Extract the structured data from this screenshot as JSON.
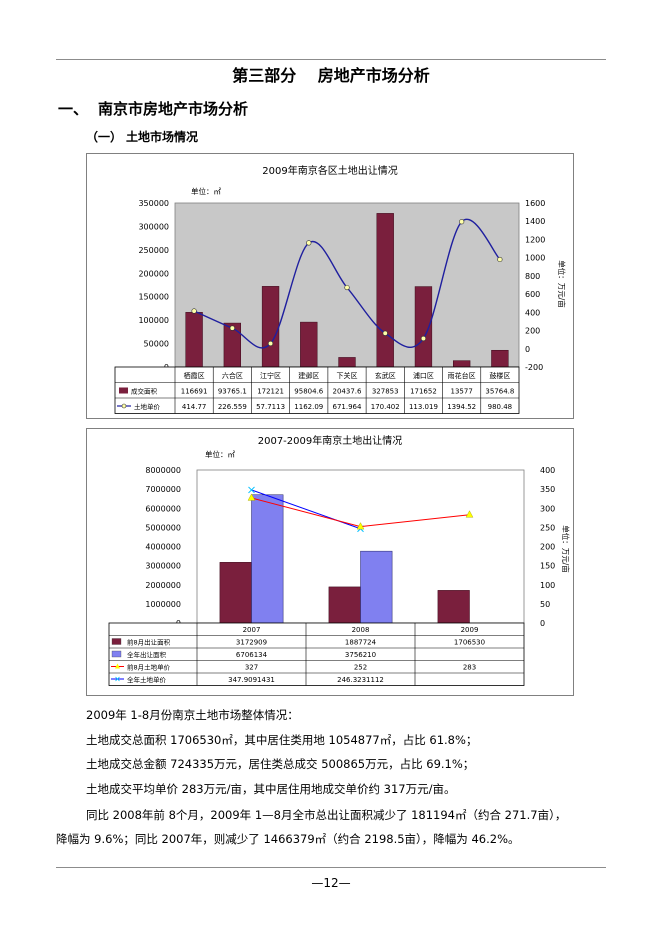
{
  "page": {
    "title": "第三部分　 房地产市场分析",
    "section1": {
      "num": "一、",
      "label": "南京市房地产市场分析"
    },
    "section1_1": {
      "num": "（一）",
      "label": "土地市场情况"
    },
    "footer": "—12—"
  },
  "chart_data": [
    {
      "type": "bar+line",
      "title": "2009年南京各区土地出让情况",
      "unit_left": "单位：㎡",
      "unit_right": "单位：万元/亩",
      "categories": [
        "栖霞区",
        "六合区",
        "江宁区",
        "建邺区",
        "下关区",
        "玄武区",
        "浦口区",
        "雨花台区",
        "鼓楼区"
      ],
      "series": [
        {
          "name": "成交面积",
          "axis": "left",
          "kind": "bar",
          "values": [
            116691,
            93765.1,
            172121,
            95804.6,
            20437.6,
            327853,
            171652,
            13577,
            35764.8
          ],
          "labels": [
            "116691",
            "93765.1",
            "172121",
            "95804.6",
            "20437.6",
            "327853",
            "171652",
            "13577",
            "35764.8"
          ]
        },
        {
          "name": "土地单价",
          "axis": "right",
          "kind": "line",
          "values": [
            414.77,
            226.559,
            57.7113,
            1162.09,
            671.964,
            170.402,
            113.019,
            1394.52,
            980.48
          ],
          "labels": [
            "414.77",
            "226.559",
            "57.7113",
            "1162.09",
            "671.964",
            "170.402",
            "113.019",
            "1394.52",
            "980.48"
          ]
        }
      ],
      "yleft": {
        "min": 0,
        "max": 350000,
        "ticks": [
          "350000",
          "300000",
          "250000",
          "200000",
          "150000",
          "100000",
          "50000",
          "0"
        ]
      },
      "yright": {
        "min": -200,
        "max": 1600,
        "ticks": [
          "1600",
          "1400",
          "1200",
          "1000",
          "800",
          "600",
          "400",
          "200",
          "0",
          "-200"
        ]
      },
      "colors": {
        "bar": "#7a1f3d",
        "line": "#1f1f9f",
        "plot_bg": "#c8c8c8"
      }
    },
    {
      "type": "bar+line",
      "title": "2007-2009年南京土地出让情况",
      "unit_left": "单位：㎡",
      "unit_right": "单位：万元/亩",
      "categories": [
        "2007",
        "2008",
        "2009"
      ],
      "series": [
        {
          "name": "前8月出让面积",
          "axis": "left",
          "kind": "bar",
          "color": "#7a1f3d",
          "values": [
            3172909,
            1887724,
            1706530
          ],
          "labels": [
            "3172909",
            "1887724",
            "1706530"
          ]
        },
        {
          "name": "全年出让面积",
          "axis": "left",
          "kind": "bar",
          "color": "#8080f0",
          "values": [
            6706134,
            3756210,
            null
          ],
          "labels": [
            "6706134",
            "3756210",
            ""
          ]
        },
        {
          "name": "前8月土地单价",
          "axis": "right",
          "kind": "line",
          "color": "#ff0000",
          "values": [
            327,
            252,
            283
          ],
          "labels": [
            "327",
            "252",
            "283"
          ]
        },
        {
          "name": "全年土地单价",
          "axis": "right",
          "kind": "line",
          "color": "#0000ff",
          "values": [
            347.9091431,
            246.3231112,
            null
          ],
          "labels": [
            "347.9091431",
            "246.3231112",
            ""
          ]
        }
      ],
      "yleft": {
        "min": 0,
        "max": 8000000,
        "ticks": [
          "8000000",
          "7000000",
          "6000000",
          "5000000",
          "4000000",
          "3000000",
          "2000000",
          "1000000",
          "0"
        ]
      },
      "yright": {
        "min": 0,
        "max": 400,
        "ticks": [
          "400",
          "350",
          "300",
          "250",
          "200",
          "150",
          "100",
          "50",
          "0"
        ]
      },
      "colors": {
        "plot_bg": "#ffffff"
      }
    }
  ],
  "paragraphs": {
    "p1": "2009年 1-8月份南京土地市场整体情况：",
    "p2": "土地成交总面积 1706530㎡，其中居住类用地 1054877㎡，占比 61.8%；",
    "p3": "土地成交总金额 724335万元，居住类总成交 500865万元，占比 69.1%；",
    "p4": "土地成交平均单价 283万元/亩，其中居住用地成交单价约 317万元/亩。",
    "p5a": "同比 2008年前 8个月，2009年 1—8月全市总出让面积减少了 181194㎡（约合 271.7亩），",
    "p5b": "降幅为 9.6%；同比 2007年，则减少了 1466379㎡（约合 2198.5亩），降幅为 46.2%。"
  }
}
